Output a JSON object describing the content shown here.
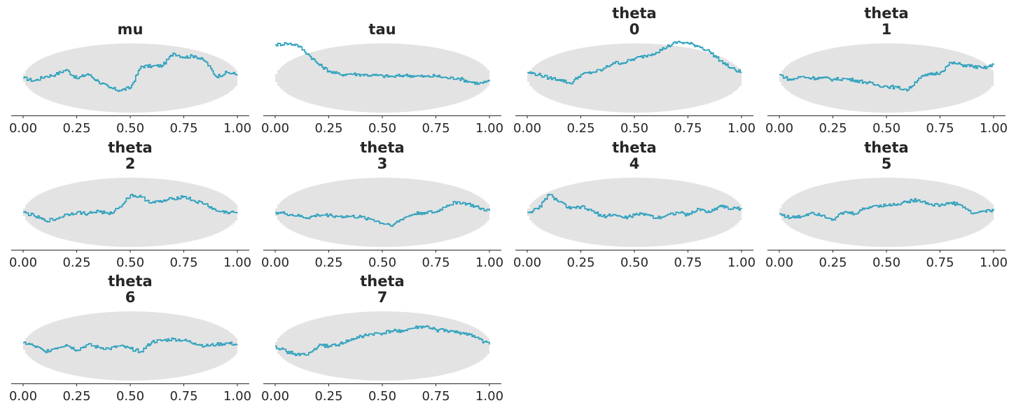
{
  "colors": {
    "line": "#2a9fbc",
    "envelope": "#e3e3e3",
    "axis": "#262626"
  },
  "chart_data": [
    {
      "type": "line",
      "title": [
        "mu"
      ],
      "xticks": [
        "0.00",
        "0.25",
        "0.50",
        "0.75",
        "1.00"
      ],
      "xlim": [
        0,
        1
      ],
      "x": [
        0,
        0.05,
        0.1,
        0.15,
        0.2,
        0.25,
        0.3,
        0.35,
        0.4,
        0.45,
        0.5,
        0.55,
        0.6,
        0.65,
        0.7,
        0.75,
        0.8,
        0.85,
        0.9,
        0.95,
        1.0
      ],
      "y": [
        0.5,
        0.46,
        0.52,
        0.55,
        0.62,
        0.49,
        0.56,
        0.45,
        0.36,
        0.32,
        0.36,
        0.67,
        0.67,
        0.68,
        0.86,
        0.8,
        0.82,
        0.74,
        0.52,
        0.58,
        0.55
      ]
    },
    {
      "type": "line",
      "title": [
        "tau"
      ],
      "xticks": [
        "0.00",
        "0.25",
        "0.50",
        "0.75",
        "1.00"
      ],
      "xlim": [
        0,
        1
      ],
      "x": [
        0,
        0.05,
        0.1,
        0.15,
        0.2,
        0.25,
        0.3,
        0.35,
        0.4,
        0.45,
        0.5,
        0.55,
        0.6,
        0.65,
        0.7,
        0.75,
        0.8,
        0.85,
        0.9,
        0.95,
        1.0
      ],
      "y": [
        0.98,
        1.0,
        0.98,
        0.85,
        0.7,
        0.6,
        0.55,
        0.56,
        0.55,
        0.54,
        0.53,
        0.52,
        0.54,
        0.53,
        0.52,
        0.53,
        0.5,
        0.5,
        0.45,
        0.42,
        0.45
      ]
    },
    {
      "type": "line",
      "title": [
        "theta",
        "0"
      ],
      "xticks": [
        "0.00",
        "0.25",
        "0.50",
        "0.75",
        "1.00"
      ],
      "xlim": [
        0,
        1
      ],
      "x": [
        0,
        0.05,
        0.1,
        0.15,
        0.2,
        0.25,
        0.3,
        0.35,
        0.4,
        0.45,
        0.5,
        0.55,
        0.6,
        0.65,
        0.7,
        0.75,
        0.8,
        0.85,
        0.9,
        0.95,
        1.0
      ],
      "y": [
        0.58,
        0.55,
        0.5,
        0.48,
        0.42,
        0.55,
        0.58,
        0.62,
        0.72,
        0.72,
        0.78,
        0.82,
        0.87,
        0.95,
        1.02,
        1.0,
        0.96,
        0.88,
        0.75,
        0.64,
        0.58
      ]
    },
    {
      "type": "line",
      "title": [
        "theta",
        "1"
      ],
      "xticks": [
        "0.00",
        "0.25",
        "0.50",
        "0.75",
        "1.00"
      ],
      "xlim": [
        0,
        1
      ],
      "x": [
        0,
        0.05,
        0.1,
        0.15,
        0.2,
        0.25,
        0.3,
        0.35,
        0.4,
        0.45,
        0.5,
        0.55,
        0.6,
        0.65,
        0.7,
        0.75,
        0.8,
        0.85,
        0.9,
        0.95,
        1.0
      ],
      "y": [
        0.55,
        0.47,
        0.52,
        0.5,
        0.5,
        0.48,
        0.49,
        0.47,
        0.44,
        0.4,
        0.38,
        0.36,
        0.33,
        0.5,
        0.55,
        0.58,
        0.72,
        0.69,
        0.67,
        0.64,
        0.69
      ]
    },
    {
      "type": "line",
      "title": [
        "theta",
        "2"
      ],
      "xticks": [
        "0.00",
        "0.25",
        "0.50",
        "0.75",
        "1.00"
      ],
      "xlim": [
        0,
        1
      ],
      "x": [
        0,
        0.05,
        0.1,
        0.15,
        0.2,
        0.25,
        0.3,
        0.35,
        0.4,
        0.45,
        0.5,
        0.55,
        0.6,
        0.65,
        0.7,
        0.75,
        0.8,
        0.85,
        0.9,
        0.95,
        1.0
      ],
      "y": [
        0.5,
        0.45,
        0.38,
        0.4,
        0.47,
        0.5,
        0.48,
        0.52,
        0.47,
        0.58,
        0.75,
        0.72,
        0.64,
        0.66,
        0.7,
        0.73,
        0.66,
        0.62,
        0.52,
        0.5,
        0.5
      ]
    },
    {
      "type": "line",
      "title": [
        "theta",
        "3"
      ],
      "xticks": [
        "0.00",
        "0.25",
        "0.50",
        "0.75",
        "1.00"
      ],
      "xlim": [
        0,
        1
      ],
      "x": [
        0,
        0.05,
        0.1,
        0.15,
        0.2,
        0.25,
        0.3,
        0.35,
        0.4,
        0.45,
        0.5,
        0.55,
        0.6,
        0.65,
        0.7,
        0.75,
        0.8,
        0.85,
        0.9,
        0.95,
        1.0
      ],
      "y": [
        0.5,
        0.48,
        0.45,
        0.42,
        0.46,
        0.46,
        0.44,
        0.44,
        0.43,
        0.4,
        0.34,
        0.32,
        0.42,
        0.48,
        0.5,
        0.5,
        0.6,
        0.65,
        0.62,
        0.56,
        0.52
      ]
    },
    {
      "type": "line",
      "title": [
        "theta",
        "4"
      ],
      "xticks": [
        "0.00",
        "0.25",
        "0.50",
        "0.75",
        "1.00"
      ],
      "xlim": [
        0,
        1
      ],
      "x": [
        0,
        0.05,
        0.1,
        0.15,
        0.2,
        0.25,
        0.3,
        0.35,
        0.4,
        0.45,
        0.5,
        0.55,
        0.6,
        0.65,
        0.7,
        0.75,
        0.8,
        0.85,
        0.9,
        0.95,
        1.0
      ],
      "y": [
        0.5,
        0.55,
        0.76,
        0.65,
        0.55,
        0.58,
        0.52,
        0.44,
        0.47,
        0.42,
        0.46,
        0.48,
        0.42,
        0.46,
        0.5,
        0.46,
        0.55,
        0.5,
        0.6,
        0.55,
        0.56
      ]
    },
    {
      "type": "line",
      "title": [
        "theta",
        "5"
      ],
      "xticks": [
        "0.00",
        "0.25",
        "0.50",
        "0.75",
        "1.00"
      ],
      "xlim": [
        0,
        1
      ],
      "x": [
        0,
        0.05,
        0.1,
        0.15,
        0.2,
        0.25,
        0.3,
        0.35,
        0.4,
        0.45,
        0.5,
        0.55,
        0.6,
        0.65,
        0.7,
        0.75,
        0.8,
        0.85,
        0.9,
        0.95,
        1.0
      ],
      "y": [
        0.48,
        0.42,
        0.44,
        0.5,
        0.46,
        0.4,
        0.5,
        0.48,
        0.56,
        0.6,
        0.6,
        0.62,
        0.66,
        0.68,
        0.62,
        0.6,
        0.64,
        0.6,
        0.48,
        0.52,
        0.52
      ]
    },
    {
      "type": "line",
      "title": [
        "theta",
        "6"
      ],
      "xticks": [
        "0.00",
        "0.25",
        "0.50",
        "0.75",
        "1.00"
      ],
      "xlim": [
        0,
        1
      ],
      "x": [
        0,
        0.05,
        0.1,
        0.15,
        0.2,
        0.25,
        0.3,
        0.35,
        0.4,
        0.45,
        0.5,
        0.55,
        0.6,
        0.65,
        0.7,
        0.75,
        0.8,
        0.85,
        0.9,
        0.95,
        1.0
      ],
      "y": [
        0.55,
        0.5,
        0.42,
        0.47,
        0.52,
        0.44,
        0.52,
        0.48,
        0.46,
        0.5,
        0.46,
        0.42,
        0.56,
        0.58,
        0.6,
        0.58,
        0.54,
        0.5,
        0.52,
        0.54,
        0.52
      ]
    },
    {
      "type": "line",
      "title": [
        "theta",
        "7"
      ],
      "xticks": [
        "0.00",
        "0.25",
        "0.50",
        "0.75",
        "1.00"
      ],
      "xlim": [
        0,
        1
      ],
      "x": [
        0,
        0.05,
        0.1,
        0.15,
        0.2,
        0.25,
        0.3,
        0.35,
        0.4,
        0.45,
        0.5,
        0.55,
        0.6,
        0.65,
        0.7,
        0.75,
        0.8,
        0.85,
        0.9,
        0.95,
        1.0
      ],
      "y": [
        0.5,
        0.42,
        0.38,
        0.37,
        0.5,
        0.5,
        0.53,
        0.58,
        0.64,
        0.67,
        0.68,
        0.72,
        0.72,
        0.76,
        0.78,
        0.73,
        0.72,
        0.69,
        0.68,
        0.6,
        0.52
      ]
    }
  ]
}
